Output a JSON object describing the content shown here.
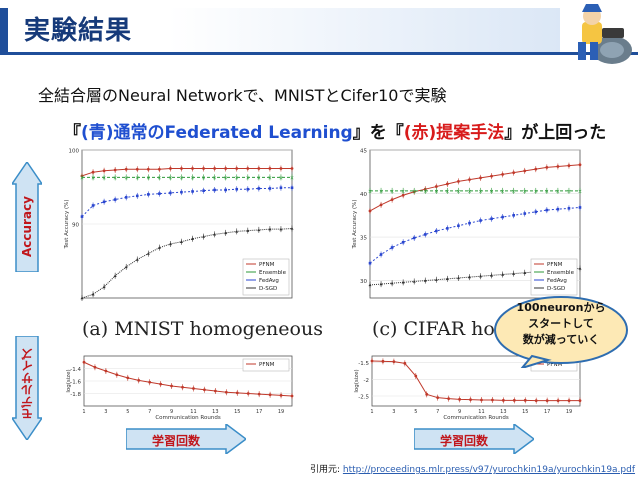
{
  "header": {
    "title": "実験結果"
  },
  "subtitle": "全結合層のNeural Networkで、MNISTとCifer10で実験",
  "summary": {
    "open_bracket": "『",
    "blue_part": "(青)通常のFederated Learning",
    "mid": "』を『",
    "red_part": "(赤)提案手法",
    "close": "』が上回った"
  },
  "side_labels": {
    "accuracy": "Accuracy",
    "model_size": "モデルサイズ"
  },
  "callout": "100neuronから\nスタートして\n数が減っていく",
  "arrows": {
    "left": "学習回数",
    "right": "学習回数"
  },
  "citation": {
    "label": "引用元: ",
    "url": "http://proceedings.mlr.press/v97/yurochkin19a/yurochkin19a.pdf"
  },
  "colors": {
    "pfnm": "#c0392b",
    "ensemble": "#2e9a3a",
    "fedavg": "#2a46d0",
    "dsgd": "#333333",
    "accent": "#c0161b"
  },
  "chart_data": [
    {
      "type": "line",
      "title": "(a) MNIST homogeneous",
      "xlabel": "",
      "ylabel": "Test Accuracy (%)",
      "x": [
        1,
        2,
        3,
        4,
        5,
        6,
        7,
        8,
        9,
        10,
        11,
        12,
        13,
        14,
        15,
        16,
        17,
        18,
        19,
        20
      ],
      "ylim": [
        80,
        100
      ],
      "yticks": [
        90,
        100
      ],
      "legend": "bottom-right",
      "series": [
        {
          "name": "PFNM",
          "values": [
            96.5,
            97.0,
            97.2,
            97.3,
            97.4,
            97.4,
            97.4,
            97.4,
            97.5,
            97.5,
            97.5,
            97.5,
            97.5,
            97.5,
            97.5,
            97.5,
            97.5,
            97.5,
            97.5,
            97.5
          ]
        },
        {
          "name": "Ensemble",
          "values": [
            96.3,
            96.3,
            96.3,
            96.3,
            96.3,
            96.3,
            96.3,
            96.3,
            96.3,
            96.3,
            96.3,
            96.3,
            96.3,
            96.3,
            96.3,
            96.3,
            96.3,
            96.3,
            96.3,
            96.3
          ]
        },
        {
          "name": "FedAvg",
          "values": [
            91.0,
            92.5,
            93.0,
            93.3,
            93.6,
            93.8,
            94.0,
            94.1,
            94.2,
            94.3,
            94.4,
            94.5,
            94.6,
            94.6,
            94.7,
            94.7,
            94.8,
            94.8,
            94.9,
            94.9
          ]
        },
        {
          "name": "D-SGD",
          "values": [
            80.0,
            80.5,
            81.5,
            83.0,
            84.2,
            85.2,
            86.0,
            86.8,
            87.3,
            87.6,
            88.0,
            88.3,
            88.6,
            88.8,
            89.0,
            89.1,
            89.2,
            89.3,
            89.3,
            89.4
          ]
        }
      ]
    },
    {
      "type": "line",
      "title": "(c) CIFAR homog",
      "xlabel": "",
      "ylabel": "Test Accuracy (%)",
      "x": [
        1,
        2,
        3,
        4,
        5,
        6,
        7,
        8,
        9,
        10,
        11,
        12,
        13,
        14,
        15,
        16,
        17,
        18,
        19,
        20
      ],
      "ylim": [
        28,
        45
      ],
      "yticks": [
        30,
        35,
        40,
        45
      ],
      "legend": "bottom-right",
      "series": [
        {
          "name": "PFNM",
          "values": [
            38.0,
            38.7,
            39.3,
            39.8,
            40.2,
            40.5,
            40.8,
            41.1,
            41.4,
            41.6,
            41.8,
            42.0,
            42.2,
            42.4,
            42.6,
            42.8,
            43.0,
            43.1,
            43.2,
            43.3
          ]
        },
        {
          "name": "Ensemble",
          "values": [
            40.3,
            40.3,
            40.3,
            40.3,
            40.3,
            40.3,
            40.3,
            40.3,
            40.3,
            40.3,
            40.3,
            40.3,
            40.3,
            40.3,
            40.3,
            40.3,
            40.3,
            40.3,
            40.3,
            40.3
          ]
        },
        {
          "name": "FedAvg",
          "values": [
            32.0,
            33.0,
            33.8,
            34.4,
            34.9,
            35.3,
            35.7,
            36.0,
            36.3,
            36.6,
            36.9,
            37.1,
            37.3,
            37.5,
            37.7,
            37.9,
            38.1,
            38.2,
            38.3,
            38.4
          ]
        },
        {
          "name": "D-SGD",
          "values": [
            29.5,
            29.6,
            29.7,
            29.8,
            29.9,
            30.0,
            30.1,
            30.2,
            30.3,
            30.4,
            30.5,
            30.6,
            30.7,
            30.8,
            30.9,
            31.0,
            31.1,
            31.2,
            31.3,
            31.4
          ]
        }
      ]
    },
    {
      "type": "line",
      "title": "",
      "xlabel": "Communication Rounds",
      "ylabel": "log(size)",
      "x": [
        1,
        2,
        3,
        4,
        5,
        6,
        7,
        8,
        9,
        10,
        11,
        12,
        13,
        14,
        15,
        16,
        17,
        18,
        19,
        20
      ],
      "ylim": [
        -2.0,
        -1.2
      ],
      "yticks": [
        -1.4,
        -1.6,
        -1.8
      ],
      "xticks": [
        1,
        3,
        5,
        7,
        9,
        11,
        13,
        15,
        17,
        19
      ],
      "legend": "top-right",
      "series": [
        {
          "name": "PFNM",
          "values": [
            -1.3,
            -1.38,
            -1.44,
            -1.5,
            -1.55,
            -1.59,
            -1.62,
            -1.65,
            -1.68,
            -1.7,
            -1.72,
            -1.74,
            -1.76,
            -1.78,
            -1.79,
            -1.8,
            -1.81,
            -1.82,
            -1.83,
            -1.84
          ]
        }
      ]
    },
    {
      "type": "line",
      "title": "",
      "xlabel": "Communication Rounds",
      "ylabel": "log(size)",
      "x": [
        1,
        2,
        3,
        4,
        5,
        6,
        7,
        8,
        9,
        10,
        11,
        12,
        13,
        14,
        15,
        16,
        17,
        18,
        19,
        20
      ],
      "ylim": [
        -2.8,
        -1.3
      ],
      "yticks": [
        -1.5,
        -2.0,
        -2.5
      ],
      "xticks": [
        1,
        3,
        5,
        7,
        9,
        11,
        13,
        15,
        17,
        19
      ],
      "legend": "top-right",
      "series": [
        {
          "name": "PFNM",
          "values": [
            -1.45,
            -1.46,
            -1.47,
            -1.52,
            -1.9,
            -2.45,
            -2.55,
            -2.58,
            -2.6,
            -2.61,
            -2.62,
            -2.62,
            -2.63,
            -2.63,
            -2.63,
            -2.64,
            -2.64,
            -2.64,
            -2.64,
            -2.64
          ]
        }
      ]
    }
  ]
}
